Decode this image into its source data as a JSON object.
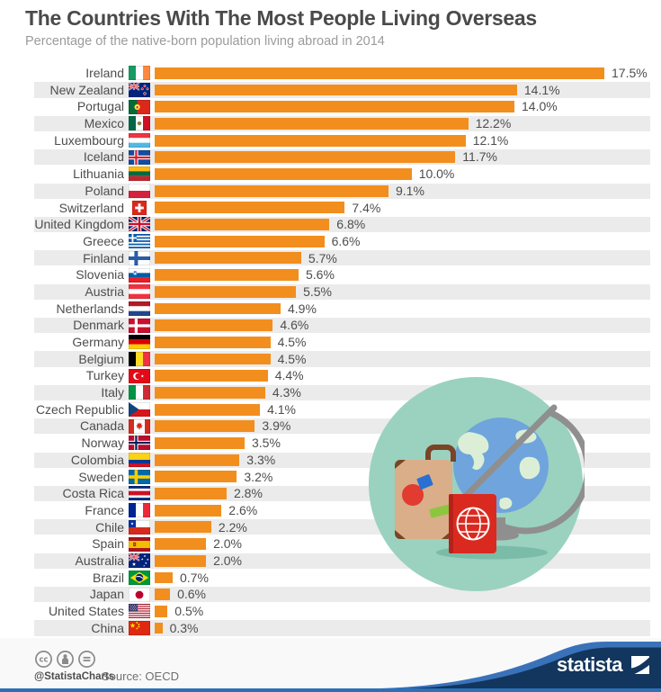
{
  "header": {
    "title": "The Countries With The Most People Living Overseas",
    "subtitle": "Percentage of the native-born population living abroad in 2014"
  },
  "chart_data": {
    "type": "bar",
    "orientation": "horizontal",
    "title": "The Countries With The Most People Living Overseas",
    "subtitle": "Percentage of the native-born population living abroad in 2014",
    "value_unit": "%",
    "xlim": [
      0,
      17.5
    ],
    "grid": false,
    "legend": false,
    "bar_color": "#F28E1E",
    "stripe_color": "#EBEBEB",
    "countries": [
      {
        "name": "Ireland",
        "value": 17.5,
        "label": "17.5%",
        "flag": "ireland-flag-icon"
      },
      {
        "name": "New Zealand",
        "value": 14.1,
        "label": "14.1%",
        "flag": "new-zealand-flag-icon"
      },
      {
        "name": "Portugal",
        "value": 14.0,
        "label": "14.0%",
        "flag": "portugal-flag-icon"
      },
      {
        "name": "Mexico",
        "value": 12.2,
        "label": "12.2%",
        "flag": "mexico-flag-icon"
      },
      {
        "name": "Luxembourg",
        "value": 12.1,
        "label": "12.1%",
        "flag": "luxembourg-flag-icon"
      },
      {
        "name": "Iceland",
        "value": 11.7,
        "label": "11.7%",
        "flag": "iceland-flag-icon"
      },
      {
        "name": "Lithuania",
        "value": 10.0,
        "label": "10.0%",
        "flag": "lithuania-flag-icon"
      },
      {
        "name": "Poland",
        "value": 9.1,
        "label": "9.1%",
        "flag": "poland-flag-icon"
      },
      {
        "name": "Switzerland",
        "value": 7.4,
        "label": "7.4%",
        "flag": "switzerland-flag-icon"
      },
      {
        "name": "United Kingdom",
        "value": 6.8,
        "label": "6.8%",
        "flag": "united-kingdom-flag-icon"
      },
      {
        "name": "Greece",
        "value": 6.6,
        "label": "6.6%",
        "flag": "greece-flag-icon"
      },
      {
        "name": "Finland",
        "value": 5.7,
        "label": "5.7%",
        "flag": "finland-flag-icon"
      },
      {
        "name": "Slovenia",
        "value": 5.6,
        "label": "5.6%",
        "flag": "slovenia-flag-icon"
      },
      {
        "name": "Austria",
        "value": 5.5,
        "label": "5.5%",
        "flag": "austria-flag-icon"
      },
      {
        "name": "Netherlands",
        "value": 4.9,
        "label": "4.9%",
        "flag": "netherlands-flag-icon"
      },
      {
        "name": "Denmark",
        "value": 4.6,
        "label": "4.6%",
        "flag": "denmark-flag-icon"
      },
      {
        "name": "Germany",
        "value": 4.5,
        "label": "4.5%",
        "flag": "germany-flag-icon"
      },
      {
        "name": "Belgium",
        "value": 4.5,
        "label": "4.5%",
        "flag": "belgium-flag-icon"
      },
      {
        "name": "Turkey",
        "value": 4.4,
        "label": "4.4%",
        "flag": "turkey-flag-icon"
      },
      {
        "name": "Italy",
        "value": 4.3,
        "label": "4.3%",
        "flag": "italy-flag-icon"
      },
      {
        "name": "Czech Republic",
        "value": 4.1,
        "label": "4.1%",
        "flag": "czech-republic-flag-icon"
      },
      {
        "name": "Canada",
        "value": 3.9,
        "label": "3.9%",
        "flag": "canada-flag-icon"
      },
      {
        "name": "Norway",
        "value": 3.5,
        "label": "3.5%",
        "flag": "norway-flag-icon"
      },
      {
        "name": "Colombia",
        "value": 3.3,
        "label": "3.3%",
        "flag": "colombia-flag-icon"
      },
      {
        "name": "Sweden",
        "value": 3.2,
        "label": "3.2%",
        "flag": "sweden-flag-icon"
      },
      {
        "name": "Costa Rica",
        "value": 2.8,
        "label": "2.8%",
        "flag": "costa-rica-flag-icon"
      },
      {
        "name": "France",
        "value": 2.6,
        "label": "2.6%",
        "flag": "france-flag-icon"
      },
      {
        "name": "Chile",
        "value": 2.2,
        "label": "2.2%",
        "flag": "chile-flag-icon"
      },
      {
        "name": "Spain",
        "value": 2.0,
        "label": "2.0%",
        "flag": "spain-flag-icon"
      },
      {
        "name": "Australia",
        "value": 2.0,
        "label": "2.0%",
        "flag": "australia-flag-icon"
      },
      {
        "name": "Brazil",
        "value": 0.7,
        "label": "0.7%",
        "flag": "brazil-flag-icon"
      },
      {
        "name": "Japan",
        "value": 0.6,
        "label": "0.6%",
        "flag": "japan-flag-icon"
      },
      {
        "name": "United States",
        "value": 0.5,
        "label": "0.5%",
        "flag": "united-states-flag-icon"
      },
      {
        "name": "China",
        "value": 0.3,
        "label": "0.3%",
        "flag": "china-flag-icon"
      }
    ]
  },
  "footer": {
    "license_icons": [
      "cc-icon",
      "attribution-icon",
      "no-derivatives-icon"
    ],
    "credit": "@StatistaCharts",
    "source": "Source: OECD",
    "brand": "statista"
  },
  "theme": {
    "accent_blue": "#2E6FB7",
    "swoosh_light_blue": "#3A72B9",
    "brand_navy": "#12365D",
    "bar_orange": "#F28E1E",
    "row_stripe_gray": "#EBEBEB",
    "title_gray": "#4A4A4A",
    "subtitle_gray": "#9B9B9B",
    "illustration_teal": "#9AD2BF"
  }
}
